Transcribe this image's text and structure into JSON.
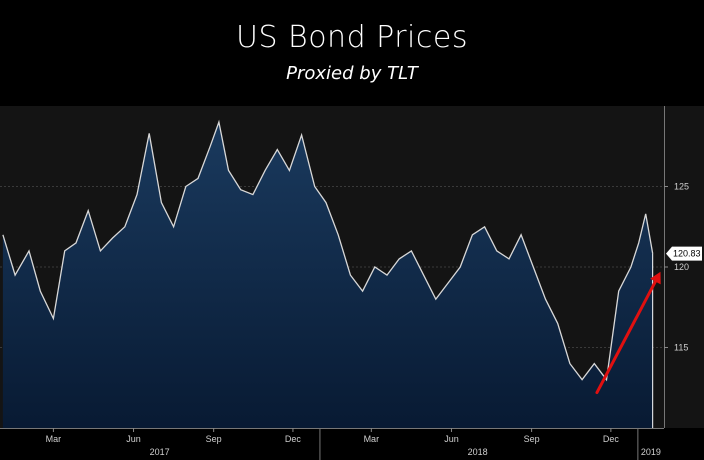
{
  "header": {
    "title": "US Bond Prices",
    "subtitle": "Proxied by TLT"
  },
  "colors": {
    "background": "#000000",
    "plot_background": "#141414",
    "area_top": "#1a3a5e",
    "area_bottom": "#081a33",
    "line": "#d8d8d8",
    "arrow": "#e01010",
    "last_value_box": "#ffffff"
  },
  "chart_data": {
    "type": "area",
    "title": "US Bond Prices",
    "subtitle": "Proxied by TLT",
    "x_start": "2017-01-01",
    "x_end": "2019-01-31",
    "ylim": [
      110,
      130
    ],
    "y_ticks": [
      115,
      120,
      125
    ],
    "y_axis_position": "right",
    "month_ticks": [
      {
        "label": "Mar",
        "date": "2017-03-01"
      },
      {
        "label": "Jun",
        "date": "2017-06-01"
      },
      {
        "label": "Sep",
        "date": "2017-09-01"
      },
      {
        "label": "Dec",
        "date": "2017-12-01"
      },
      {
        "label": "Mar",
        "date": "2018-03-01"
      },
      {
        "label": "Jun",
        "date": "2018-06-01"
      },
      {
        "label": "Sep",
        "date": "2018-09-01"
      },
      {
        "label": "Dec",
        "date": "2018-12-01"
      }
    ],
    "year_labels": [
      {
        "label": "2017",
        "date": "2017-07-01"
      },
      {
        "label": "2018",
        "date": "2018-07-01"
      },
      {
        "label": "2019",
        "date": "2019-01-16"
      }
    ],
    "last_value": 120.83,
    "last_value_label": "120.83",
    "series": [
      {
        "x": [
          "2017-01-02",
          "2017-01-16",
          "2017-02-01",
          "2017-02-14",
          "2017-03-01",
          "2017-03-14",
          "2017-03-27",
          "2017-04-10",
          "2017-04-24",
          "2017-05-08",
          "2017-05-22",
          "2017-06-05",
          "2017-06-19",
          "2017-07-03",
          "2017-07-17",
          "2017-07-31",
          "2017-08-14",
          "2017-08-28",
          "2017-09-07",
          "2017-09-18",
          "2017-10-02",
          "2017-10-16",
          "2017-10-30",
          "2017-11-13",
          "2017-11-27",
          "2017-12-11",
          "2017-12-26",
          "2018-01-08",
          "2018-01-22",
          "2018-02-05",
          "2018-02-19",
          "2018-03-05",
          "2018-03-19",
          "2018-04-02",
          "2018-04-16",
          "2018-04-30",
          "2018-05-14",
          "2018-05-28",
          "2018-06-11",
          "2018-06-25",
          "2018-07-09",
          "2018-07-23",
          "2018-08-06",
          "2018-08-20",
          "2018-09-03",
          "2018-09-17",
          "2018-10-01",
          "2018-10-15",
          "2018-10-29",
          "2018-11-12",
          "2018-11-26",
          "2018-12-10",
          "2018-12-24",
          "2019-01-02",
          "2019-01-10",
          "2019-01-18"
        ],
        "y": [
          122.0,
          119.5,
          121.0,
          118.5,
          116.8,
          121.0,
          121.5,
          123.5,
          121.0,
          121.8,
          122.5,
          124.5,
          128.3,
          124.0,
          122.5,
          125.0,
          125.5,
          127.5,
          129.0,
          126.0,
          124.8,
          124.5,
          126.0,
          127.3,
          126.0,
          128.2,
          125.0,
          124.0,
          122.0,
          119.5,
          118.5,
          120.0,
          119.5,
          120.5,
          121.0,
          119.5,
          118.0,
          119.0,
          120.0,
          122.0,
          122.5,
          121.0,
          120.5,
          122.0,
          120.0,
          118.0,
          116.5,
          114.0,
          113.0,
          114.0,
          113.0,
          118.5,
          120.0,
          121.5,
          123.3,
          120.83
        ]
      }
    ]
  }
}
